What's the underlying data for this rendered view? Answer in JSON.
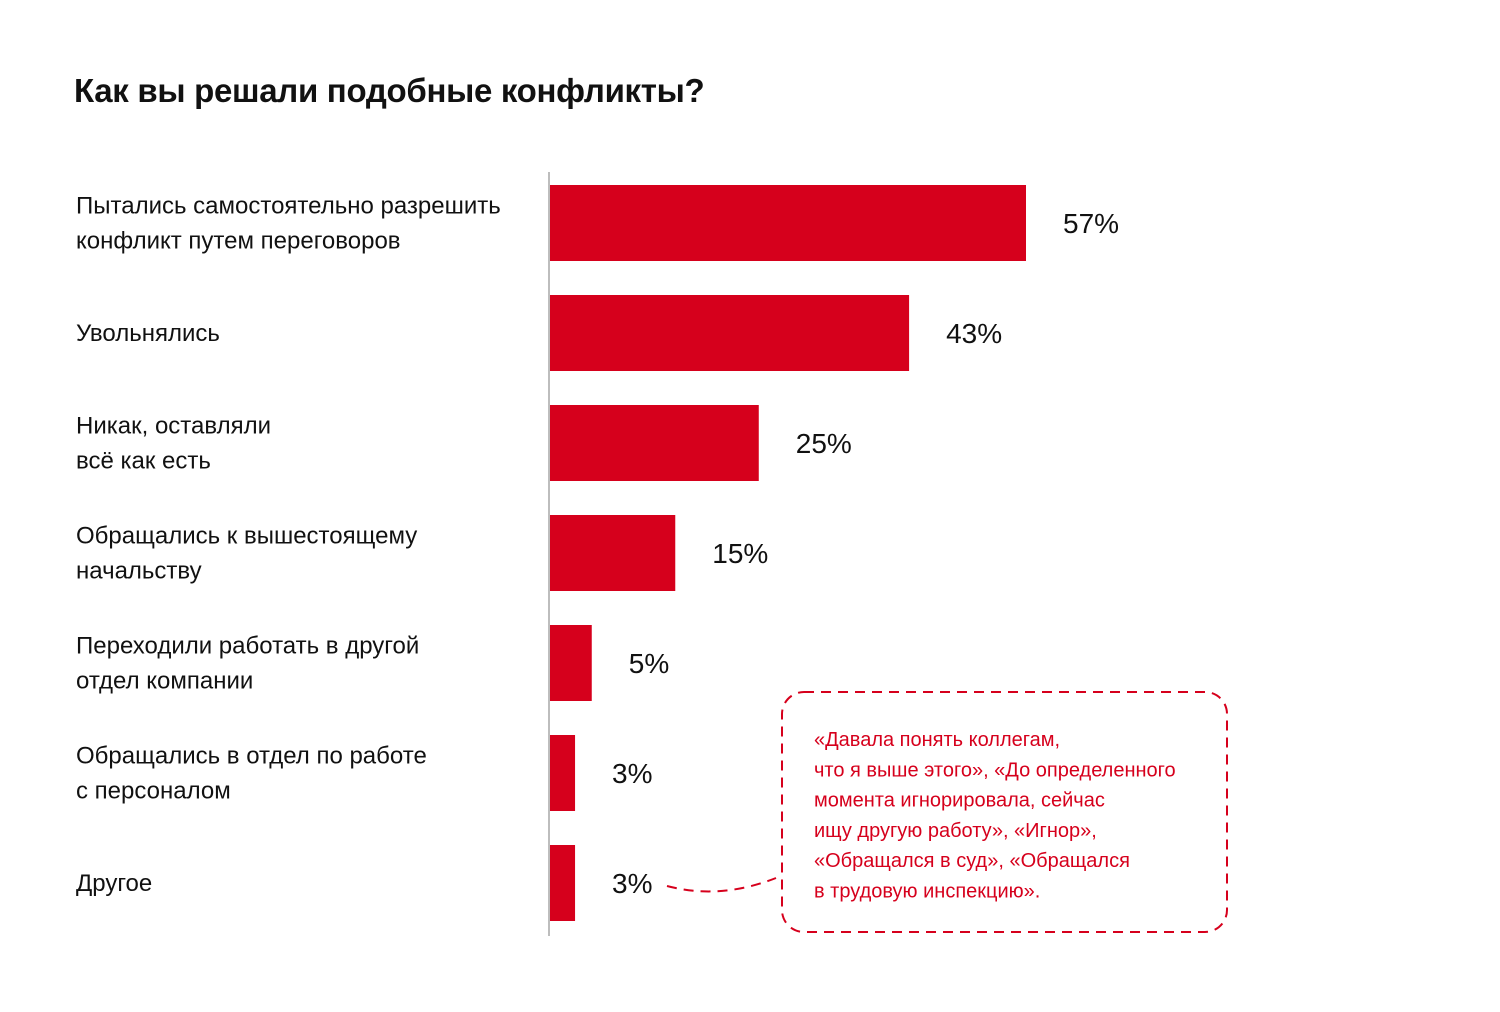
{
  "chart_data": {
    "type": "bar",
    "orientation": "horizontal",
    "title": "Как вы решали подобные конфликты?",
    "categories": [
      [
        "Пытались самостоятельно разрешить",
        "конфликт путем переговоров"
      ],
      [
        "Увольнялись"
      ],
      [
        "Никак, оставляли",
        "всё как есть"
      ],
      [
        "Обращались к вышестоящему",
        "начальству"
      ],
      [
        "Переходили работать в другой",
        "отдел компании"
      ],
      [
        "Обращались в отдел по работе",
        "с персоналом"
      ],
      [
        "Другое"
      ]
    ],
    "values": [
      57,
      43,
      25,
      15,
      5,
      3,
      3
    ],
    "value_labels": [
      "57%",
      "43%",
      "25%",
      "15%",
      "5%",
      "3%",
      "3%"
    ],
    "xlim": [
      0,
      100
    ],
    "grid": false,
    "bar_color": "#d6001c",
    "annotation": {
      "target_category_index": 6,
      "lines": [
        "«Давала понять коллегам,",
        "что я выше этого», «До определенного",
        "момента игнорировала, сейчас",
        "ищу другую работу», «Игнор»,",
        "«Обращался в суд», «Обращался",
        "в трудовую инспекцию»."
      ]
    }
  }
}
